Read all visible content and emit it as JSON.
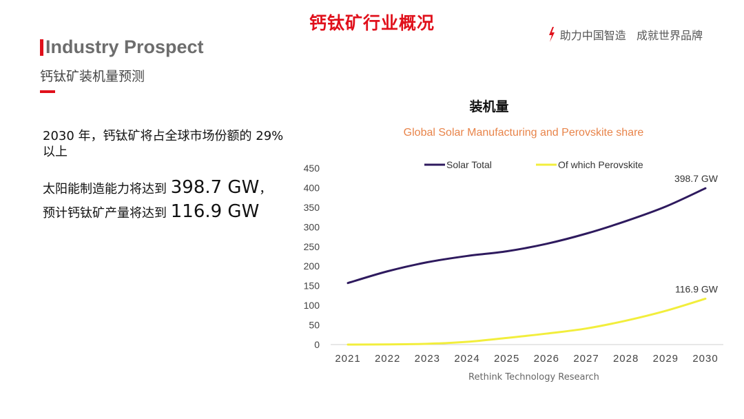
{
  "header": {
    "main_title": "钙钛矿行业概况",
    "slogan": "助力中国智造   成就世界品牌"
  },
  "section": {
    "title": "Industry Prospect",
    "subtitle": "钙钛矿装机量预测"
  },
  "text": {
    "para1": "2030 年，钙钛矿将占全球市场份额的 29% 以上",
    "line1_prefix": "太阳能制造能力将达到 ",
    "line1_value": "398.7 GW",
    "line1_suffix": "，",
    "line2_prefix": "预计钙钛矿产量将达到 ",
    "line2_value": "116.9 GW"
  },
  "source": "Rethink Technology Research",
  "colors": {
    "accent": "#e0101b",
    "chart_title": "#e8844a",
    "solar_total": "#2e1a5e",
    "perovskite": "#f2ee3c"
  },
  "chart_data": {
    "type": "line",
    "heading": "装机量",
    "title": "Global Solar Manufacturing and Perovskite share",
    "x": [
      2021,
      2022,
      2023,
      2024,
      2025,
      2026,
      2027,
      2028,
      2029,
      2030
    ],
    "ylim": [
      0,
      450
    ],
    "yticks": [
      0,
      50,
      100,
      150,
      200,
      250,
      300,
      350,
      400,
      450
    ],
    "grid": false,
    "legend_position": "top",
    "series": [
      {
        "name": "Solar Total",
        "color": "#2e1a5e",
        "values": [
          157,
          187,
          210,
          226,
          238,
          257,
          283,
          315,
          352,
          398.7
        ],
        "end_label": "398.7 GW"
      },
      {
        "name": "Of which Perovskite",
        "color": "#f2ee3c",
        "values": [
          0,
          0.5,
          2,
          7,
          17,
          28,
          41,
          61,
          86,
          116.9
        ],
        "end_label": "116.9 GW"
      }
    ]
  }
}
